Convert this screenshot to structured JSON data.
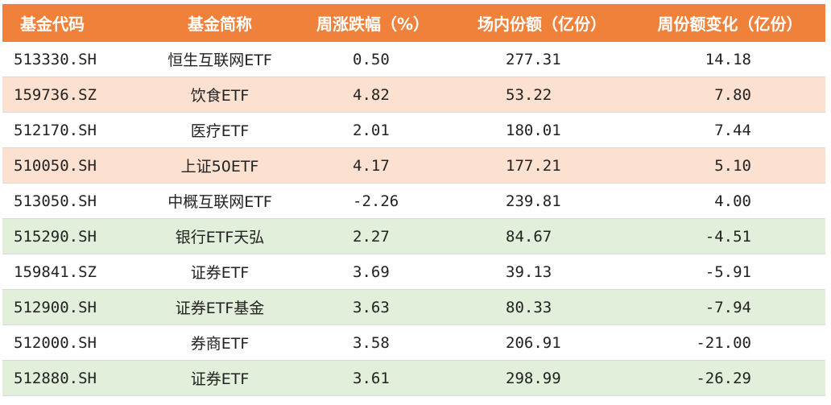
{
  "header": {
    "code": "基金代码",
    "name": "基金简称",
    "weekly_change": "周涨跌幅（%）",
    "shares": "场内份额（亿份）",
    "share_change": "周份额变化（亿份）"
  },
  "rows": [
    {
      "code": "513330.SH",
      "name": "恒生互联网ETF",
      "weekly_change": "0.50",
      "shares": "277.31",
      "share_change": "14.18",
      "highlight": "none"
    },
    {
      "code": "159736.SZ",
      "name": "饮食ETF",
      "weekly_change": "4.82",
      "shares": "53.22",
      "share_change": "7.80",
      "highlight": "orange"
    },
    {
      "code": "512170.SH",
      "name": "医疗ETF",
      "weekly_change": "2.01",
      "shares": "180.01",
      "share_change": "7.44",
      "highlight": "none"
    },
    {
      "code": "510050.SH",
      "name": "上证50ETF",
      "weekly_change": "4.17",
      "shares": "177.21",
      "share_change": "5.10",
      "highlight": "orange"
    },
    {
      "code": "513050.SH",
      "name": "中概互联网ETF",
      "weekly_change": "-2.26",
      "shares": "239.81",
      "share_change": "4.00",
      "highlight": "none"
    },
    {
      "code": "515290.SH",
      "name": "银行ETF天弘",
      "weekly_change": "2.27",
      "shares": "84.67",
      "share_change": "-4.51",
      "highlight": "green"
    },
    {
      "code": "159841.SZ",
      "name": "证券ETF",
      "weekly_change": "3.69",
      "shares": "39.13",
      "share_change": "-5.91",
      "highlight": "none"
    },
    {
      "code": "512900.SH",
      "name": "证券ETF基金",
      "weekly_change": "3.63",
      "shares": "80.33",
      "share_change": "-7.94",
      "highlight": "green"
    },
    {
      "code": "512000.SH",
      "name": "券商ETF",
      "weekly_change": "3.58",
      "shares": "206.91",
      "share_change": "-21.00",
      "highlight": "none"
    },
    {
      "code": "512880.SH",
      "name": "证券ETF",
      "weekly_change": "3.61",
      "shares": "298.99",
      "share_change": "-26.29",
      "highlight": "green"
    }
  ],
  "colors": {
    "header_bg": "#f0813a",
    "highlight_orange": "#fce0d0",
    "highlight_green": "#e2efda"
  }
}
